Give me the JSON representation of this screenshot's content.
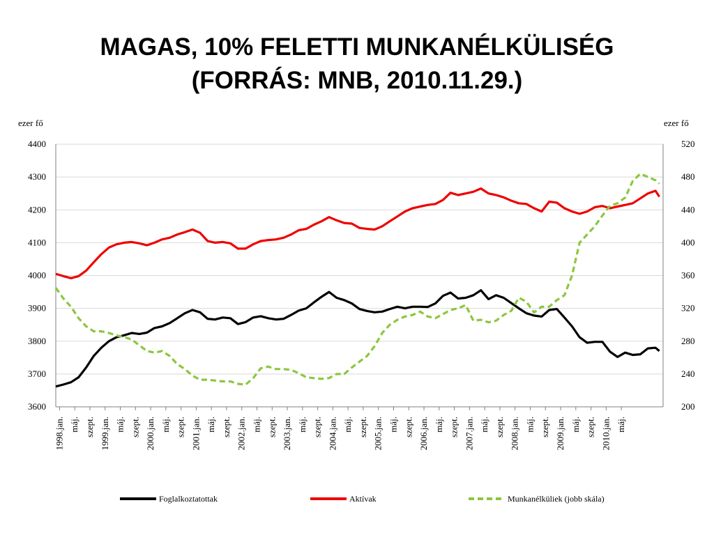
{
  "slide": {
    "title_line1": "MAGAS, 10% FELETTI MUNKANÉLKÜLISÉG",
    "title_line2": "(FORRÁS: MNB, 2010.11.29.)"
  },
  "chart_data": {
    "type": "line",
    "left_unit": "ezer fő",
    "right_unit": "ezer fő",
    "y_left": {
      "min": 3600,
      "max": 4400,
      "ticks": [
        3600,
        3700,
        3800,
        3900,
        4000,
        4100,
        4200,
        4300,
        4400
      ]
    },
    "y_right": {
      "min": 200,
      "max": 520,
      "ticks": [
        200,
        240,
        280,
        320,
        360,
        400,
        440,
        480,
        520
      ]
    },
    "grid": "horizontal",
    "legend_position": "bottom",
    "x_start_index": 0,
    "x_end_index": 150,
    "x_ticks": [
      {
        "i": 0,
        "label": "1998.jan."
      },
      {
        "i": 4,
        "label": "máj."
      },
      {
        "i": 8,
        "label": "szept."
      },
      {
        "i": 12,
        "label": "1999.jan."
      },
      {
        "i": 16,
        "label": "máj."
      },
      {
        "i": 20,
        "label": "szept."
      },
      {
        "i": 24,
        "label": "2000.jan."
      },
      {
        "i": 28,
        "label": "máj."
      },
      {
        "i": 32,
        "label": "szept."
      },
      {
        "i": 36,
        "label": "2001.jan."
      },
      {
        "i": 40,
        "label": "máj."
      },
      {
        "i": 44,
        "label": "szept."
      },
      {
        "i": 48,
        "label": "2002.jan."
      },
      {
        "i": 52,
        "label": "máj."
      },
      {
        "i": 56,
        "label": "szept."
      },
      {
        "i": 60,
        "label": "2003.jan."
      },
      {
        "i": 64,
        "label": "máj."
      },
      {
        "i": 68,
        "label": "szept."
      },
      {
        "i": 72,
        "label": "2004.jan."
      },
      {
        "i": 76,
        "label": "máj."
      },
      {
        "i": 80,
        "label": "szept."
      },
      {
        "i": 84,
        "label": "2005.jan."
      },
      {
        "i": 88,
        "label": "máj."
      },
      {
        "i": 92,
        "label": "szept."
      },
      {
        "i": 96,
        "label": "2006.jan."
      },
      {
        "i": 100,
        "label": "máj."
      },
      {
        "i": 104,
        "label": "szept."
      },
      {
        "i": 108,
        "label": "2007.jan."
      },
      {
        "i": 112,
        "label": "máj."
      },
      {
        "i": 116,
        "label": "szept."
      },
      {
        "i": 120,
        "label": "2008.jan."
      },
      {
        "i": 124,
        "label": "máj."
      },
      {
        "i": 128,
        "label": "szept."
      },
      {
        "i": 132,
        "label": "2009.jan."
      },
      {
        "i": 136,
        "label": "máj."
      },
      {
        "i": 140,
        "label": "szept."
      },
      {
        "i": 144,
        "label": "2010.jan."
      },
      {
        "i": 148,
        "label": "máj."
      }
    ],
    "series": [
      {
        "name": "Foglalkoztatottak",
        "axis": "left",
        "color": "#000000",
        "style": "solid",
        "points": [
          [
            0,
            3662
          ],
          [
            2,
            3668
          ],
          [
            4,
            3675
          ],
          [
            6,
            3690
          ],
          [
            8,
            3720
          ],
          [
            10,
            3755
          ],
          [
            12,
            3780
          ],
          [
            14,
            3800
          ],
          [
            16,
            3812
          ],
          [
            18,
            3818
          ],
          [
            20,
            3825
          ],
          [
            22,
            3822
          ],
          [
            24,
            3826
          ],
          [
            26,
            3840
          ],
          [
            28,
            3845
          ],
          [
            30,
            3855
          ],
          [
            32,
            3870
          ],
          [
            34,
            3885
          ],
          [
            36,
            3895
          ],
          [
            38,
            3888
          ],
          [
            40,
            3868
          ],
          [
            42,
            3866
          ],
          [
            44,
            3872
          ],
          [
            46,
            3870
          ],
          [
            48,
            3852
          ],
          [
            50,
            3858
          ],
          [
            52,
            3872
          ],
          [
            54,
            3876
          ],
          [
            56,
            3870
          ],
          [
            58,
            3866
          ],
          [
            60,
            3868
          ],
          [
            62,
            3880
          ],
          [
            64,
            3893
          ],
          [
            66,
            3900
          ],
          [
            68,
            3918
          ],
          [
            70,
            3935
          ],
          [
            72,
            3950
          ],
          [
            74,
            3932
          ],
          [
            76,
            3925
          ],
          [
            78,
            3915
          ],
          [
            80,
            3898
          ],
          [
            82,
            3892
          ],
          [
            84,
            3888
          ],
          [
            86,
            3890
          ],
          [
            88,
            3898
          ],
          [
            90,
            3905
          ],
          [
            92,
            3900
          ],
          [
            94,
            3905
          ],
          [
            96,
            3905
          ],
          [
            98,
            3904
          ],
          [
            100,
            3915
          ],
          [
            102,
            3938
          ],
          [
            104,
            3948
          ],
          [
            106,
            3930
          ],
          [
            108,
            3932
          ],
          [
            110,
            3940
          ],
          [
            112,
            3955
          ],
          [
            114,
            3928
          ],
          [
            116,
            3940
          ],
          [
            118,
            3932
          ],
          [
            120,
            3916
          ],
          [
            122,
            3900
          ],
          [
            124,
            3885
          ],
          [
            126,
            3878
          ],
          [
            128,
            3875
          ],
          [
            130,
            3895
          ],
          [
            132,
            3898
          ],
          [
            134,
            3872
          ],
          [
            136,
            3845
          ],
          [
            138,
            3812
          ],
          [
            140,
            3795
          ],
          [
            142,
            3798
          ],
          [
            144,
            3798
          ],
          [
            146,
            3768
          ],
          [
            148,
            3752
          ],
          [
            150,
            3765
          ],
          [
            152,
            3758
          ],
          [
            154,
            3760
          ],
          [
            156,
            3778
          ],
          [
            158,
            3780
          ],
          [
            159,
            3770
          ]
        ]
      },
      {
        "name": "Aktívak",
        "axis": "left",
        "color": "#ee0000",
        "style": "solid",
        "points": [
          [
            0,
            4005
          ],
          [
            2,
            3998
          ],
          [
            4,
            3992
          ],
          [
            6,
            3998
          ],
          [
            8,
            4015
          ],
          [
            10,
            4040
          ],
          [
            12,
            4065
          ],
          [
            14,
            4085
          ],
          [
            16,
            4095
          ],
          [
            18,
            4100
          ],
          [
            20,
            4102
          ],
          [
            22,
            4098
          ],
          [
            24,
            4092
          ],
          [
            26,
            4100
          ],
          [
            28,
            4110
          ],
          [
            30,
            4115
          ],
          [
            32,
            4125
          ],
          [
            34,
            4132
          ],
          [
            36,
            4140
          ],
          [
            38,
            4130
          ],
          [
            40,
            4105
          ],
          [
            42,
            4100
          ],
          [
            44,
            4102
          ],
          [
            46,
            4098
          ],
          [
            48,
            4082
          ],
          [
            50,
            4082
          ],
          [
            52,
            4095
          ],
          [
            54,
            4105
          ],
          [
            56,
            4108
          ],
          [
            58,
            4110
          ],
          [
            60,
            4115
          ],
          [
            62,
            4125
          ],
          [
            64,
            4138
          ],
          [
            66,
            4142
          ],
          [
            68,
            4155
          ],
          [
            70,
            4165
          ],
          [
            72,
            4178
          ],
          [
            74,
            4168
          ],
          [
            76,
            4160
          ],
          [
            78,
            4158
          ],
          [
            80,
            4145
          ],
          [
            82,
            4142
          ],
          [
            84,
            4140
          ],
          [
            86,
            4150
          ],
          [
            88,
            4165
          ],
          [
            90,
            4180
          ],
          [
            92,
            4195
          ],
          [
            94,
            4205
          ],
          [
            96,
            4210
          ],
          [
            98,
            4215
          ],
          [
            100,
            4218
          ],
          [
            102,
            4230
          ],
          [
            104,
            4252
          ],
          [
            106,
            4245
          ],
          [
            108,
            4250
          ],
          [
            110,
            4255
          ],
          [
            112,
            4265
          ],
          [
            114,
            4250
          ],
          [
            116,
            4245
          ],
          [
            118,
            4238
          ],
          [
            120,
            4228
          ],
          [
            122,
            4220
          ],
          [
            124,
            4218
          ],
          [
            126,
            4205
          ],
          [
            128,
            4195
          ],
          [
            130,
            4225
          ],
          [
            132,
            4222
          ],
          [
            134,
            4205
          ],
          [
            136,
            4195
          ],
          [
            138,
            4188
          ],
          [
            140,
            4195
          ],
          [
            142,
            4208
          ],
          [
            144,
            4212
          ],
          [
            146,
            4205
          ],
          [
            148,
            4210
          ],
          [
            150,
            4215
          ],
          [
            152,
            4220
          ],
          [
            154,
            4235
          ],
          [
            156,
            4250
          ],
          [
            158,
            4258
          ],
          [
            159,
            4240
          ]
        ]
      },
      {
        "name": "Munkanélküliek (jobb skála)",
        "axis": "right",
        "color": "#8cc63f",
        "style": "dashed",
        "points": [
          [
            0,
            345
          ],
          [
            2,
            332
          ],
          [
            4,
            322
          ],
          [
            6,
            308
          ],
          [
            8,
            298
          ],
          [
            10,
            292
          ],
          [
            12,
            292
          ],
          [
            14,
            290
          ],
          [
            16,
            287
          ],
          [
            18,
            285
          ],
          [
            20,
            282
          ],
          [
            22,
            275
          ],
          [
            24,
            268
          ],
          [
            26,
            266
          ],
          [
            28,
            268
          ],
          [
            30,
            262
          ],
          [
            32,
            252
          ],
          [
            34,
            246
          ],
          [
            36,
            238
          ],
          [
            38,
            233
          ],
          [
            40,
            233
          ],
          [
            42,
            232
          ],
          [
            44,
            231
          ],
          [
            46,
            231
          ],
          [
            48,
            228
          ],
          [
            50,
            227
          ],
          [
            52,
            235
          ],
          [
            54,
            247
          ],
          [
            56,
            249
          ],
          [
            58,
            246
          ],
          [
            60,
            246
          ],
          [
            62,
            245
          ],
          [
            64,
            241
          ],
          [
            66,
            236
          ],
          [
            68,
            235
          ],
          [
            70,
            234
          ],
          [
            72,
            235
          ],
          [
            74,
            240
          ],
          [
            76,
            240
          ],
          [
            78,
            248
          ],
          [
            80,
            255
          ],
          [
            82,
            262
          ],
          [
            84,
            274
          ],
          [
            86,
            290
          ],
          [
            88,
            300
          ],
          [
            90,
            306
          ],
          [
            92,
            310
          ],
          [
            94,
            312
          ],
          [
            96,
            316
          ],
          [
            98,
            310
          ],
          [
            100,
            308
          ],
          [
            102,
            313
          ],
          [
            104,
            318
          ],
          [
            106,
            320
          ],
          [
            108,
            324
          ],
          [
            110,
            305
          ],
          [
            112,
            306
          ],
          [
            114,
            303
          ],
          [
            116,
            305
          ],
          [
            118,
            312
          ],
          [
            120,
            317
          ],
          [
            122,
            333
          ],
          [
            124,
            328
          ],
          [
            126,
            315
          ],
          [
            128,
            322
          ],
          [
            130,
            322
          ],
          [
            132,
            330
          ],
          [
            134,
            336
          ],
          [
            136,
            360
          ],
          [
            138,
            400
          ],
          [
            140,
            410
          ],
          [
            142,
            420
          ],
          [
            144,
            433
          ],
          [
            146,
            445
          ],
          [
            148,
            448
          ],
          [
            150,
            455
          ],
          [
            152,
            475
          ],
          [
            154,
            484
          ],
          [
            156,
            480
          ],
          [
            158,
            476
          ],
          [
            159,
            472
          ]
        ]
      }
    ]
  }
}
